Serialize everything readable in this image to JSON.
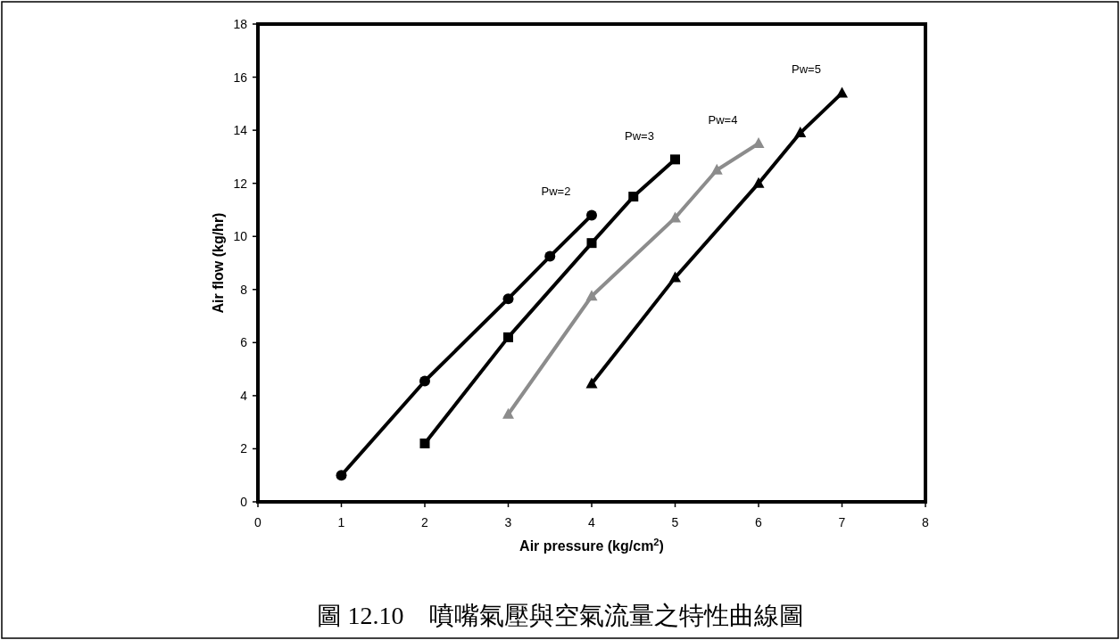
{
  "chart_data": {
    "type": "line",
    "xlabel": "Air pressure (kg/cm$^{2}$)",
    "ylabel": "Air flow (kg/hr)",
    "xlim": [
      0,
      8
    ],
    "xticks": [
      0,
      1,
      2,
      3,
      4,
      5,
      6,
      7,
      8
    ],
    "ylim": [
      0,
      18
    ],
    "yticks": [
      0,
      2,
      4,
      6,
      8,
      10,
      12,
      14,
      16,
      18
    ],
    "grid": false,
    "line_style": "solid",
    "series": [
      {
        "name": "Pw=2",
        "color": "#000000",
        "marker": "circle",
        "x": [
          1,
          2,
          3,
          3.5,
          4
        ],
        "values": [
          1.0,
          4.55,
          7.65,
          9.25,
          10.8
        ]
      },
      {
        "name": "Pw=3",
        "color": "#000000",
        "marker": "square",
        "x": [
          2,
          3,
          4,
          4.5,
          5
        ],
        "values": [
          2.2,
          6.2,
          9.75,
          11.5,
          12.9
        ]
      },
      {
        "name": "Pw=4",
        "color": "#8c8c8c",
        "marker": "triangle",
        "x": [
          3,
          4,
          5,
          5.5,
          6
        ],
        "values": [
          3.3,
          7.75,
          10.7,
          12.5,
          13.5
        ]
      },
      {
        "name": "Pw=5",
        "color": "#000000",
        "marker": "triangle",
        "x": [
          4,
          5,
          6,
          6.5,
          7
        ],
        "values": [
          4.45,
          8.45,
          12.0,
          13.9,
          15.4
        ]
      }
    ],
    "annotations": [
      "圖 12.10　噴嘴氣壓與空氣流量之特性曲線圖"
    ]
  }
}
